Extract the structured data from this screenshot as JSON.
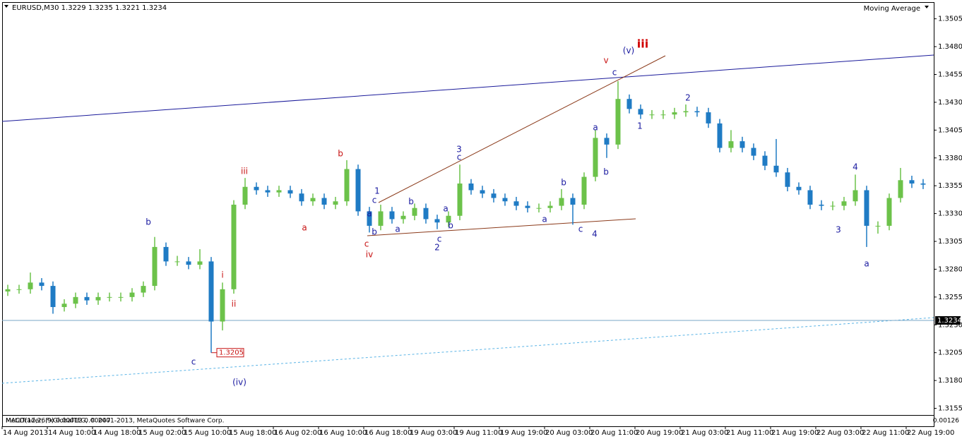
{
  "chart_data": {
    "type": "candlestick",
    "title": "EURUSD,M30  1.3229 1.3235 1.3221 1.3234",
    "indicator": "Moving Average",
    "subwindow_label": "MACD(12,26,9) 0.00012 0.00047",
    "subwindow_value": "0.00126",
    "watermark": "MetaTrader, FxGlobalTFG, © 2001-2013, MetaQuotes Software Corp.",
    "up_color": "#6cc24a",
    "down_color": "#1f7bc4",
    "open": [
      1.326,
      1.3262,
      1.3262,
      1.3268,
      1.3265,
      1.3246,
      1.3249,
      1.3255,
      1.3252,
      1.3255,
      1.3255,
      1.3255,
      1.3259,
      1.3265,
      1.33,
      1.3287,
      1.3287,
      1.3284,
      1.3287,
      1.3233,
      1.3262,
      1.3338,
      1.3354,
      1.3351,
      1.3349,
      1.3351,
      1.3348,
      1.3341,
      1.3344,
      1.3338,
      1.3341,
      1.337,
      1.3332,
      1.3319,
      1.3332,
      1.3325,
      1.3328,
      1.3335,
      1.3325,
      1.3322,
      1.3328,
      1.3357,
      1.3351,
      1.3348,
      1.3344,
      1.3341,
      1.3337,
      1.3335,
      1.3335,
      1.3337,
      1.3344,
      1.3338,
      1.3363,
      1.3398,
      1.3392,
      1.3433,
      1.3424,
      1.3419,
      1.3419,
      1.3419,
      1.3421,
      1.3422,
      1.3421,
      1.3411,
      1.3389,
      1.3395,
      1.3389,
      1.3382,
      1.3373,
      1.3367,
      1.3354,
      1.3351,
      1.3338,
      1.3337,
      1.3337,
      1.3341,
      1.3351,
      1.3319,
      1.3319,
      1.3344,
      1.336,
      1.3357
    ],
    "high": [
      1.3266,
      1.3266,
      1.3277,
      1.3272,
      1.3269,
      1.3253,
      1.3259,
      1.3259,
      1.3259,
      1.3259,
      1.3259,
      1.3263,
      1.3269,
      1.3309,
      1.3304,
      1.3292,
      1.3291,
      1.3298,
      1.3291,
      1.3268,
      1.3342,
      1.3362,
      1.3358,
      1.3355,
      1.3355,
      1.3355,
      1.3352,
      1.3348,
      1.3348,
      1.3345,
      1.3378,
      1.3374,
      1.3336,
      1.3338,
      1.3336,
      1.3332,
      1.3339,
      1.3339,
      1.3329,
      1.3332,
      1.3374,
      1.3361,
      1.3355,
      1.3352,
      1.3348,
      1.3345,
      1.3341,
      1.3339,
      1.3341,
      1.3352,
      1.3348,
      1.3367,
      1.3405,
      1.3402,
      1.3449,
      1.3437,
      1.3428,
      1.3423,
      1.3423,
      1.3425,
      1.3428,
      1.3426,
      1.3425,
      1.3415,
      1.3405,
      1.3399,
      1.3393,
      1.3386,
      1.3397,
      1.3371,
      1.3358,
      1.3355,
      1.3342,
      1.3341,
      1.3345,
      1.3365,
      1.3355,
      1.3323,
      1.3348,
      1.3371,
      1.3364,
      1.3361
    ],
    "low": [
      1.3256,
      1.3258,
      1.3258,
      1.3261,
      1.324,
      1.3242,
      1.3245,
      1.3248,
      1.3248,
      1.3251,
      1.3251,
      1.3251,
      1.3255,
      1.3261,
      1.3283,
      1.3283,
      1.328,
      1.328,
      1.3205,
      1.3225,
      1.3258,
      1.3334,
      1.3347,
      1.3345,
      1.3345,
      1.3344,
      1.3337,
      1.3337,
      1.3334,
      1.3334,
      1.3337,
      1.3328,
      1.3313,
      1.3315,
      1.3321,
      1.3321,
      1.3324,
      1.3321,
      1.3316,
      1.3318,
      1.3324,
      1.3347,
      1.3344,
      1.334,
      1.3337,
      1.3333,
      1.3331,
      1.3331,
      1.3331,
      1.3333,
      1.332,
      1.3334,
      1.3359,
      1.338,
      1.3388,
      1.342,
      1.3415,
      1.3415,
      1.3415,
      1.3415,
      1.3417,
      1.3417,
      1.3407,
      1.3385,
      1.3385,
      1.3385,
      1.3378,
      1.3369,
      1.3363,
      1.335,
      1.3347,
      1.3334,
      1.3333,
      1.3333,
      1.3333,
      1.3337,
      1.33,
      1.3312,
      1.3315,
      1.334,
      1.3353,
      1.3352
    ],
    "close": [
      1.3262,
      1.3262,
      1.3268,
      1.3265,
      1.3246,
      1.3249,
      1.3255,
      1.3252,
      1.3255,
      1.3255,
      1.3255,
      1.3259,
      1.3265,
      1.33,
      1.3287,
      1.3287,
      1.3284,
      1.3287,
      1.3233,
      1.3262,
      1.3338,
      1.3354,
      1.3351,
      1.3349,
      1.3351,
      1.3348,
      1.3341,
      1.3344,
      1.3338,
      1.3341,
      1.337,
      1.3332,
      1.3319,
      1.3332,
      1.3325,
      1.3328,
      1.3335,
      1.3325,
      1.3322,
      1.3328,
      1.3357,
      1.3351,
      1.3348,
      1.3344,
      1.3341,
      1.3337,
      1.3335,
      1.3335,
      1.3337,
      1.3344,
      1.3338,
      1.3363,
      1.3398,
      1.3392,
      1.3433,
      1.3424,
      1.3419,
      1.3419,
      1.3419,
      1.3421,
      1.3422,
      1.3421,
      1.3411,
      1.3389,
      1.3395,
      1.3389,
      1.3382,
      1.3373,
      1.3367,
      1.3354,
      1.3351,
      1.3338,
      1.3337,
      1.3337,
      1.3341,
      1.3351,
      1.3319,
      1.3319,
      1.3344,
      1.336,
      1.3357,
      1.3356
    ],
    "xlim": [
      0,
      82.44
    ],
    "xticks": [
      {
        "value": 0,
        "label": "14 Aug 2013"
      },
      {
        "value": 4,
        "label": "14 Aug 10:00"
      },
      {
        "value": 8,
        "label": "14 Aug 18:00"
      },
      {
        "value": 12,
        "label": "15 Aug 02:00"
      },
      {
        "value": 16,
        "label": "15 Aug 10:00"
      },
      {
        "value": 20,
        "label": "15 Aug 18:00"
      },
      {
        "value": 24,
        "label": "16 Aug 02:00"
      },
      {
        "value": 28,
        "label": "16 Aug 10:00"
      },
      {
        "value": 32,
        "label": "16 Aug 18:00"
      },
      {
        "value": 36,
        "label": "19 Aug 03:00"
      },
      {
        "value": 40,
        "label": "19 Aug 11:00"
      },
      {
        "value": 44,
        "label": "19 Aug 19:00"
      },
      {
        "value": 48,
        "label": "20 Aug 03:00"
      },
      {
        "value": 52,
        "label": "20 Aug 11:00"
      },
      {
        "value": 56,
        "label": "20 Aug 19:00"
      },
      {
        "value": 60,
        "label": "21 Aug 03:00"
      },
      {
        "value": 64,
        "label": "21 Aug 11:00"
      },
      {
        "value": 68,
        "label": "21 Aug 19:00"
      },
      {
        "value": 72,
        "label": "22 Aug 03:00"
      },
      {
        "value": 76,
        "label": "22 Aug 11:00"
      },
      {
        "value": 80,
        "label": "22 Aug 19:00"
      }
    ],
    "ylim": [
      1.3149,
      1.352
    ],
    "yticks": [
      1.3155,
      {
        "value": 1.318,
        "label": "1.3180"
      },
      1.3205,
      {
        "value": 1.323,
        "label": "1.3230"
      },
      1.3255,
      {
        "value": 1.328,
        "label": "1.3280"
      },
      1.3305,
      {
        "value": 1.333,
        "label": "1.3330"
      },
      1.3355,
      {
        "value": 1.338,
        "label": "1.3380"
      },
      1.3405,
      {
        "value": 1.343,
        "label": "1.3430"
      },
      1.3455,
      {
        "value": 1.348,
        "label": "1.3480"
      },
      1.3505
    ],
    "bid": 1.3234,
    "low_marker": 1.3205,
    "annotations": [
      {
        "text": "b",
        "color": "#1a1aa0"
      },
      {
        "text": "c",
        "color": "#1a1aa0"
      },
      {
        "text": "(iv)",
        "color": "#1a1aa0"
      },
      {
        "text": "i",
        "color": "#c81414"
      },
      {
        "text": "ii",
        "color": "#c81414"
      },
      {
        "text": "iii",
        "color": "#c81414"
      },
      {
        "text": "a",
        "color": "#c81414"
      },
      {
        "text": "b",
        "color": "#c81414"
      },
      {
        "text": "c",
        "color": "#c81414"
      },
      {
        "text": "iv",
        "color": "#c81414"
      },
      {
        "text": "1",
        "color": "#1a1aa0"
      },
      {
        "text": "c",
        "color": "#1a1aa0"
      },
      {
        "text": "a",
        "color": "#1a1aa0"
      },
      {
        "text": "b",
        "color": "#1a1aa0"
      },
      {
        "text": "a",
        "color": "#1a1aa0"
      },
      {
        "text": "b",
        "color": "#1a1aa0"
      },
      {
        "text": "2",
        "color": "#1a1aa0"
      },
      {
        "text": "c",
        "color": "#1a1aa0"
      },
      {
        "text": "b",
        "color": "#1a1aa0"
      },
      {
        "text": "a",
        "color": "#1a1aa0"
      },
      {
        "text": "3",
        "color": "#1a1aa0"
      },
      {
        "text": "c",
        "color": "#1a1aa0"
      },
      {
        "text": "a",
        "color": "#1a1aa0"
      },
      {
        "text": "b",
        "color": "#1a1aa0"
      },
      {
        "text": "c",
        "color": "#1a1aa0"
      },
      {
        "text": "4",
        "color": "#1a1aa0"
      },
      {
        "text": "a",
        "color": "#1a1aa0"
      },
      {
        "text": "b",
        "color": "#1a1aa0"
      },
      {
        "text": "c",
        "color": "#1a1aa0"
      },
      {
        "text": "v",
        "color": "#c81414"
      },
      {
        "text": "(v)",
        "color": "#1a1aa0"
      },
      {
        "text": "iii",
        "color": "#d00000"
      },
      {
        "text": "1",
        "color": "#1a1aa0"
      },
      {
        "text": "2",
        "color": "#1a1aa0"
      },
      {
        "text": "4",
        "color": "#1a1aa0"
      },
      {
        "text": "3",
        "color": "#1a1aa0"
      },
      {
        "text": "a",
        "color": "#1a1aa0"
      }
    ]
  }
}
